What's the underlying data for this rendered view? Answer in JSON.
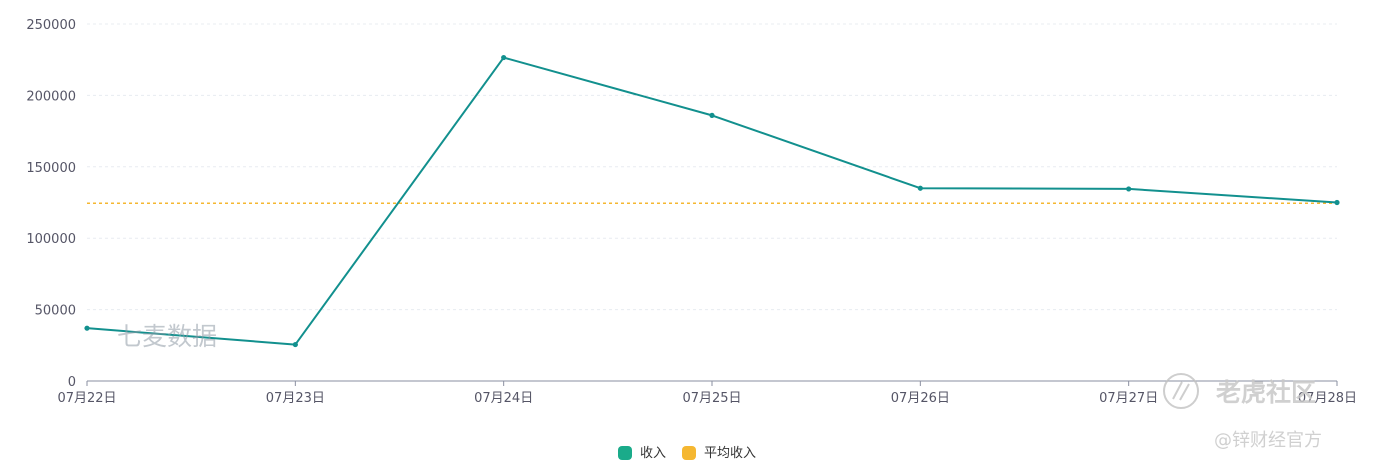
{
  "chart_data": {
    "type": "line",
    "title": "",
    "xlabel": "",
    "ylabel": "",
    "categories": [
      "07月22日",
      "07月23日",
      "07月24日",
      "07月25日",
      "07月26日",
      "07月27日",
      "07月28日"
    ],
    "ylim": [
      0,
      250000
    ],
    "yticks": [
      0,
      50000,
      100000,
      150000,
      200000,
      250000
    ],
    "ytick_labels": [
      "0",
      "50000",
      "100000",
      "150000",
      "200000",
      "250000"
    ],
    "series": [
      {
        "name": "收入",
        "color": "#12908e",
        "values": [
          37000,
          25500,
          226500,
          186000,
          135000,
          134500,
          125000
        ]
      }
    ],
    "reference_lines": [
      {
        "name": "平均收入",
        "color": "#f5b731",
        "value": 124500,
        "style": "dashed"
      }
    ],
    "legend": {
      "position": "bottom-center",
      "items": [
        {
          "label": "收入",
          "color": "#1aab8a"
        },
        {
          "label": "平均收入",
          "color": "#f5b731"
        }
      ]
    },
    "grid": {
      "horizontal": true,
      "vertical": false
    }
  },
  "watermarks": {
    "center": "七麦数据",
    "corner": "老虎社区",
    "credit": "@锌财经官方"
  }
}
